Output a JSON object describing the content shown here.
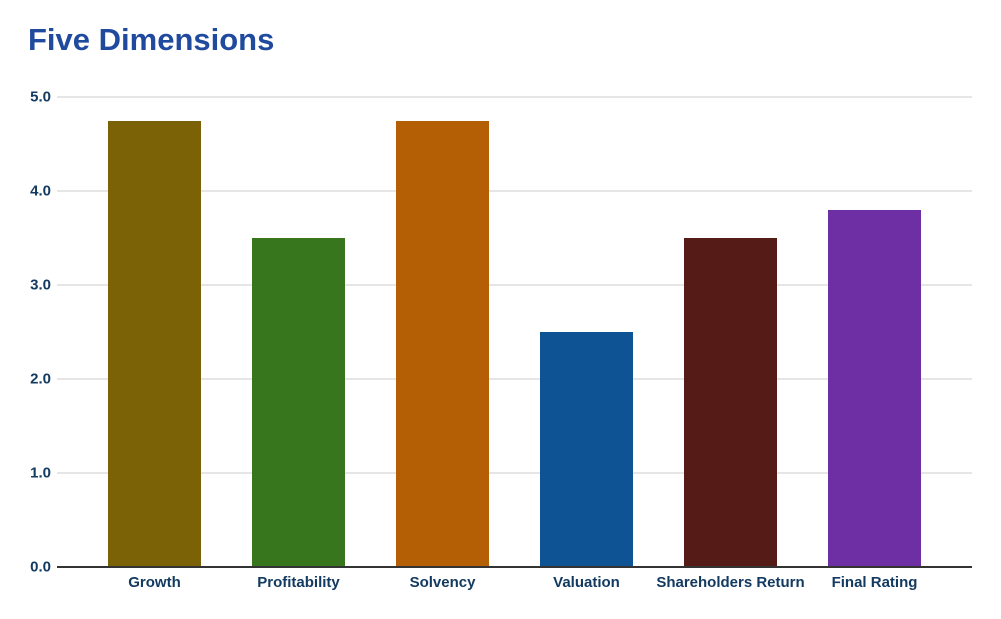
{
  "chart_data": {
    "type": "bar",
    "title": "Five Dimensions",
    "categories": [
      "Growth",
      "Profitability",
      "Solvency",
      "Valuation",
      "Shareholders Return",
      "Final Rating"
    ],
    "values": [
      4.75,
      3.5,
      4.75,
      2.5,
      3.5,
      3.8
    ],
    "bar_colors": [
      "#7C6206",
      "#38761D",
      "#B45F06",
      "#0E5394",
      "#551B17",
      "#6E2FA5"
    ],
    "xlabel": "",
    "ylabel": "",
    "ylim": [
      0,
      5
    ],
    "ytick_labels": [
      "5.0",
      "4.0",
      "3.0",
      "2.0",
      "1.0",
      "0.0"
    ],
    "ytick_values": [
      5,
      4,
      3,
      2,
      1,
      0
    ],
    "grid": "horizontal",
    "legend": "none"
  },
  "colors": {
    "title_text": "#1F4A9E",
    "axis_text": "#133A60",
    "gridline": "#CCCCCC",
    "baseline_axis": "#333333",
    "background": "#FFFFFF"
  }
}
